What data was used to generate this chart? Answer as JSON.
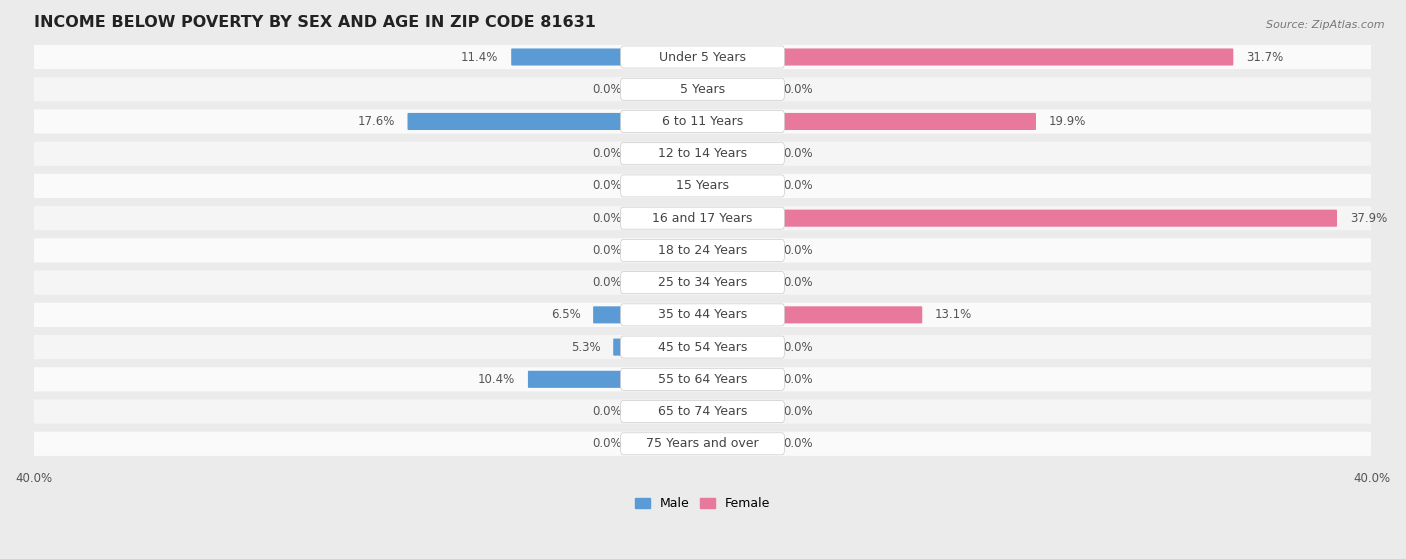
{
  "title": "INCOME BELOW POVERTY BY SEX AND AGE IN ZIP CODE 81631",
  "source": "Source: ZipAtlas.com",
  "categories": [
    "Under 5 Years",
    "5 Years",
    "6 to 11 Years",
    "12 to 14 Years",
    "15 Years",
    "16 and 17 Years",
    "18 to 24 Years",
    "25 to 34 Years",
    "35 to 44 Years",
    "45 to 54 Years",
    "55 to 64 Years",
    "65 to 74 Years",
    "75 Years and over"
  ],
  "male": [
    11.4,
    0.0,
    17.6,
    0.0,
    0.0,
    0.0,
    0.0,
    0.0,
    6.5,
    5.3,
    10.4,
    0.0,
    0.0
  ],
  "female": [
    31.7,
    0.0,
    19.9,
    0.0,
    0.0,
    37.9,
    0.0,
    0.0,
    13.1,
    0.0,
    0.0,
    0.0,
    0.0
  ],
  "male_color_strong": "#5b9bd5",
  "male_color_light": "#a9c7e8",
  "female_color_strong": "#e8799c",
  "female_color_light": "#f4afc3",
  "axis_limit": 40.0,
  "min_bar": 4.0,
  "background_color": "#ebebeb",
  "row_bg_odd": "#f5f5f5",
  "row_bg_even": "#fafafa",
  "title_fontsize": 11.5,
  "label_fontsize": 9,
  "value_fontsize": 8.5,
  "legend_fontsize": 9,
  "source_fontsize": 8
}
